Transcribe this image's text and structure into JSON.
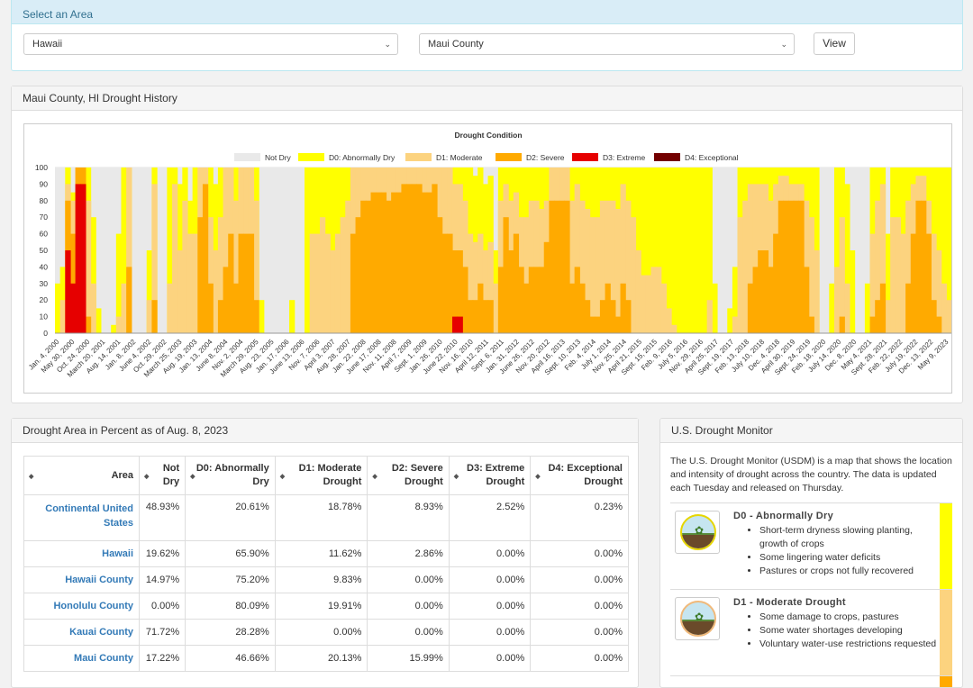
{
  "select_area": {
    "title": "Select an Area",
    "state_value": "Hawaii",
    "county_value": "Maui County",
    "view_label": "View"
  },
  "history": {
    "title": "Maui County, HI Drought History"
  },
  "chart_data": {
    "type": "area",
    "title": "Drought Condition",
    "legend": [
      "Not Dry",
      "D0: Abnormally Dry",
      "D1: Moderate",
      "D2: Severe",
      "D3: Extreme",
      "D4: Exceptional"
    ],
    "colors": [
      "#e9e9e9",
      "#ffff00",
      "#fcd37f",
      "#ffaa00",
      "#e60000",
      "#730000"
    ],
    "yticks": [
      0,
      10,
      20,
      30,
      40,
      50,
      60,
      70,
      80,
      90,
      100
    ],
    "ylim": [
      0,
      100
    ],
    "xticks": [
      "Jan. 4, 2000",
      "May 30, 2000",
      "Oct. 24, 2000",
      "March 20, 2001",
      "Aug. 14, 2001",
      "Jan. 8, 2002",
      "June 4, 2002",
      "Oct. 29, 2002",
      "March 25, 2003",
      "Aug. 19, 2003",
      "Jan. 13, 2004",
      "June 8, 2004",
      "Nov. 2, 2004",
      "March 29, 2005",
      "Aug. 23, 2005",
      "Jan. 17, 2006",
      "June 13, 2006",
      "Nov. 7, 2006",
      "April 3, 2007",
      "Aug. 28, 2007",
      "Jan. 22, 2008",
      "June 17, 2008",
      "Nov. 11, 2008",
      "April 7, 2009",
      "Sept. 1, 2009",
      "Jan. 26, 2010",
      "June 22, 2010",
      "Nov. 16, 2010",
      "April 12, 2011",
      "Sept. 6, 2011",
      "Jan. 31, 2012",
      "June 26, 2012",
      "Nov. 20, 2012",
      "April 16, 2013",
      "Sept. 10, 2013",
      "Feb. 4, 2014",
      "July 1, 2014",
      "Nov. 25, 2014",
      "April 21, 2015",
      "Sept. 15, 2015",
      "Feb. 9, 2016",
      "July 5, 2016",
      "Nov. 29, 2016",
      "April 25, 2017",
      "Sept. 19, 2017",
      "Feb. 13, 2018",
      "July 10, 2018",
      "Dec. 4, 2018",
      "April 30, 2019",
      "Sept. 24, 2019",
      "Feb. 18, 2020",
      "July 14, 2020",
      "Dec. 8, 2020",
      "May 4, 2021",
      "Sept. 28, 2021",
      "Feb. 22, 2022",
      "July 19, 2022",
      "Dec. 13, 2022",
      "May 9, 2023"
    ],
    "series": [
      {
        "name": "D0: Abnormally Dry",
        "values": [
          30,
          40,
          100,
          85,
          100,
          100,
          100,
          70,
          15,
          0,
          0,
          5,
          60,
          100,
          100,
          0,
          0,
          0,
          50,
          100,
          0,
          0,
          100,
          100,
          90,
          100,
          80,
          100,
          100,
          100,
          100,
          90,
          100,
          100,
          100,
          100,
          100,
          100,
          100,
          100,
          20,
          0,
          0,
          0,
          0,
          0,
          20,
          0,
          0,
          100,
          100,
          100,
          100,
          100,
          100,
          100,
          100,
          100,
          100,
          100,
          100,
          100,
          100,
          100,
          100,
          100,
          100,
          100,
          100,
          100,
          100,
          100,
          100,
          100,
          100,
          100,
          100,
          100,
          100,
          100,
          100,
          100,
          95,
          100,
          90,
          95,
          50,
          100,
          100,
          100,
          100,
          100,
          100,
          100,
          100,
          100,
          100,
          100,
          100,
          100,
          100,
          100,
          100,
          100,
          100,
          100,
          100,
          100,
          100,
          100,
          100,
          100,
          100,
          100,
          100,
          100,
          100,
          100,
          100,
          100,
          100,
          100,
          100,
          100,
          100,
          100,
          100,
          100,
          100,
          30,
          0,
          0,
          15,
          40,
          100,
          100,
          100,
          100,
          100,
          100,
          100,
          100,
          100,
          100,
          100,
          100,
          100,
          100,
          100,
          100,
          0,
          0,
          30,
          100,
          100,
          90,
          50,
          0,
          0,
          30,
          100,
          100,
          100,
          60,
          100,
          100,
          100,
          100,
          100,
          100,
          100,
          100,
          100,
          100,
          100,
          100
        ]
      },
      {
        "name": "D1: Moderate",
        "values": [
          0,
          20,
          90,
          80,
          100,
          100,
          80,
          30,
          0,
          0,
          0,
          0,
          10,
          30,
          100,
          0,
          0,
          0,
          20,
          90,
          0,
          0,
          30,
          90,
          50,
          80,
          60,
          60,
          100,
          100,
          70,
          50,
          70,
          100,
          100,
          80,
          100,
          100,
          100,
          80,
          0,
          0,
          0,
          0,
          0,
          0,
          0,
          0,
          0,
          0,
          60,
          60,
          70,
          60,
          50,
          60,
          70,
          80,
          100,
          100,
          100,
          100,
          100,
          100,
          100,
          100,
          100,
          100,
          100,
          100,
          100,
          100,
          100,
          100,
          100,
          100,
          100,
          100,
          90,
          90,
          80,
          60,
          55,
          60,
          50,
          55,
          30,
          80,
          90,
          80,
          85,
          70,
          70,
          80,
          80,
          75,
          80,
          100,
          100,
          100,
          100,
          80,
          90,
          80,
          75,
          70,
          70,
          80,
          80,
          80,
          75,
          90,
          80,
          70,
          50,
          35,
          35,
          40,
          40,
          30,
          15,
          5,
          0,
          0,
          0,
          0,
          0,
          0,
          20,
          0,
          0,
          0,
          0,
          10,
          70,
          80,
          90,
          90,
          90,
          90,
          80,
          90,
          95,
          95,
          90,
          90,
          90,
          80,
          70,
          50,
          0,
          0,
          0,
          40,
          70,
          30,
          0,
          0,
          0,
          0,
          60,
          80,
          90,
          20,
          70,
          70,
          60,
          80,
          90,
          95,
          95,
          80,
          60,
          50,
          30,
          20
        ]
      },
      {
        "name": "D2: Severe",
        "values": [
          0,
          0,
          80,
          60,
          100,
          100,
          10,
          0,
          0,
          0,
          0,
          0,
          0,
          0,
          40,
          0,
          0,
          0,
          0,
          20,
          0,
          0,
          0,
          0,
          0,
          0,
          0,
          0,
          70,
          90,
          30,
          0,
          20,
          40,
          60,
          30,
          60,
          60,
          60,
          20,
          0,
          0,
          0,
          0,
          0,
          0,
          0,
          0,
          0,
          0,
          0,
          0,
          0,
          0,
          0,
          0,
          0,
          0,
          60,
          70,
          80,
          80,
          85,
          85,
          85,
          80,
          85,
          85,
          90,
          90,
          90,
          90,
          85,
          85,
          90,
          70,
          60,
          60,
          50,
          50,
          40,
          20,
          20,
          30,
          20,
          20,
          0,
          40,
          70,
          50,
          60,
          40,
          30,
          40,
          40,
          40,
          55,
          80,
          80,
          80,
          80,
          30,
          40,
          30,
          20,
          10,
          10,
          20,
          30,
          20,
          10,
          30,
          20,
          0,
          0,
          0,
          0,
          0,
          0,
          0,
          0,
          0,
          0,
          0,
          0,
          0,
          0,
          0,
          0,
          0,
          0,
          0,
          0,
          0,
          0,
          0,
          30,
          40,
          50,
          50,
          40,
          60,
          80,
          80,
          80,
          80,
          80,
          40,
          10,
          0,
          0,
          0,
          0,
          0,
          10,
          0,
          0,
          0,
          0,
          0,
          10,
          20,
          30,
          0,
          0,
          0,
          0,
          30,
          60,
          80,
          80,
          60,
          20,
          10,
          0,
          0
        ]
      },
      {
        "name": "D3: Extreme",
        "values": [
          0,
          0,
          50,
          30,
          90,
          90,
          0,
          0,
          0,
          0,
          0,
          0,
          0,
          0,
          0,
          0,
          0,
          0,
          0,
          0,
          0,
          0,
          0,
          0,
          0,
          0,
          0,
          0,
          0,
          0,
          0,
          0,
          0,
          0,
          0,
          0,
          0,
          0,
          0,
          0,
          0,
          0,
          0,
          0,
          0,
          0,
          0,
          0,
          0,
          0,
          0,
          0,
          0,
          0,
          0,
          0,
          0,
          0,
          0,
          0,
          0,
          0,
          0,
          0,
          0,
          0,
          0,
          0,
          0,
          0,
          0,
          0,
          0,
          0,
          0,
          0,
          0,
          0,
          10,
          10,
          0,
          0,
          0,
          0,
          0,
          0,
          0,
          0,
          0,
          0,
          0,
          0,
          0,
          0,
          0,
          0,
          0,
          0,
          0,
          0,
          0,
          0,
          0,
          0,
          0,
          0,
          0,
          0,
          0,
          0,
          0,
          0,
          0,
          0,
          0,
          0,
          0,
          0,
          0,
          0,
          0,
          0,
          0,
          0,
          0,
          0,
          0,
          0,
          0,
          0,
          0,
          0,
          0,
          0,
          0,
          0,
          0,
          0,
          0,
          0,
          0,
          0,
          0,
          0,
          0,
          0,
          0,
          0,
          0,
          0,
          0,
          0,
          0,
          0,
          0,
          0,
          0,
          0,
          0,
          0,
          0,
          0,
          0,
          0,
          0,
          0,
          0,
          0,
          0,
          0,
          0,
          0,
          0,
          0,
          0,
          0
        ]
      },
      {
        "name": "D4: Exceptional",
        "values": [
          0,
          0,
          0,
          0,
          0,
          0,
          0,
          0,
          0,
          0,
          0,
          0,
          0,
          0,
          0,
          0,
          0,
          0,
          0,
          0,
          0,
          0,
          0,
          0,
          0,
          0,
          0,
          0,
          0,
          0,
          0,
          0,
          0,
          0,
          0,
          0,
          0,
          0,
          0,
          0,
          0,
          0,
          0,
          0,
          0,
          0,
          0,
          0,
          0,
          0,
          0,
          0,
          0,
          0,
          0,
          0,
          0,
          0,
          0,
          0,
          0,
          0,
          0,
          0,
          0,
          0,
          0,
          0,
          0,
          0,
          0,
          0,
          0,
          0,
          0,
          0,
          0,
          0,
          0,
          0,
          0,
          0,
          0,
          0,
          0,
          0,
          0,
          0,
          0,
          0,
          0,
          0,
          0,
          0,
          0,
          0,
          0,
          0,
          0,
          0,
          0,
          0,
          0,
          0,
          0,
          0,
          0,
          0,
          0,
          0,
          0,
          0,
          0,
          0,
          0,
          0,
          0,
          0,
          0,
          0,
          0,
          0,
          0,
          0,
          0,
          0,
          0,
          0,
          0,
          0,
          0,
          0,
          0,
          0,
          0,
          0,
          0,
          0,
          0,
          0,
          0,
          0,
          0,
          0,
          0,
          0,
          0,
          0,
          0,
          0,
          0,
          0,
          0,
          0,
          0,
          0,
          0,
          0,
          0,
          0,
          0,
          0,
          0,
          0,
          0,
          0,
          0,
          0,
          0,
          0,
          0,
          0,
          0,
          0,
          0,
          0
        ]
      }
    ]
  },
  "table": {
    "title": "Drought Area in Percent as of Aug. 8, 2023",
    "headers": [
      "Area",
      "Not Dry",
      "D0: Abnormally Dry",
      "D1: Moderate Drought",
      "D2: Severe Drought",
      "D3: Extreme Drought",
      "D4: Exceptional Drought"
    ],
    "rows": [
      {
        "area": "Continental United States",
        "not_dry": "48.93%",
        "d0": "20.61%",
        "d1": "18.78%",
        "d2": "8.93%",
        "d3": "2.52%",
        "d4": "0.23%"
      },
      {
        "area": "Hawaii",
        "not_dry": "19.62%",
        "d0": "65.90%",
        "d1": "11.62%",
        "d2": "2.86%",
        "d3": "0.00%",
        "d4": "0.00%"
      },
      {
        "area": "Hawaii County",
        "not_dry": "14.97%",
        "d0": "75.20%",
        "d1": "9.83%",
        "d2": "0.00%",
        "d3": "0.00%",
        "d4": "0.00%"
      },
      {
        "area": "Honolulu County",
        "not_dry": "0.00%",
        "d0": "80.09%",
        "d1": "19.91%",
        "d2": "0.00%",
        "d3": "0.00%",
        "d4": "0.00%"
      },
      {
        "area": "Kauai County",
        "not_dry": "71.72%",
        "d0": "28.28%",
        "d1": "0.00%",
        "d2": "0.00%",
        "d3": "0.00%",
        "d4": "0.00%"
      },
      {
        "area": "Maui County",
        "not_dry": "17.22%",
        "d0": "46.66%",
        "d1": "20.13%",
        "d2": "15.99%",
        "d3": "0.00%",
        "d4": "0.00%"
      }
    ]
  },
  "usdm": {
    "title": "U.S. Drought Monitor",
    "description": "The U.S. Drought Monitor (USDM) is a map that shows the location and intensity of drought across the country. The data is updated each Tuesday and released on Thursday.",
    "categories": [
      {
        "title": "D0 - Abnormally Dry",
        "color": "#ffff00",
        "items": [
          "Short-term dryness slowing planting, growth of crops",
          "Some lingering water deficits",
          "Pastures or crops not fully recovered"
        ]
      },
      {
        "title": "D1 - Moderate Drought",
        "color": "#fcd37f",
        "items": [
          "Some damage to crops, pastures",
          "Some water shortages developing",
          "Voluntary water-use restrictions requested"
        ]
      }
    ],
    "next_color": "#ffaa00"
  }
}
